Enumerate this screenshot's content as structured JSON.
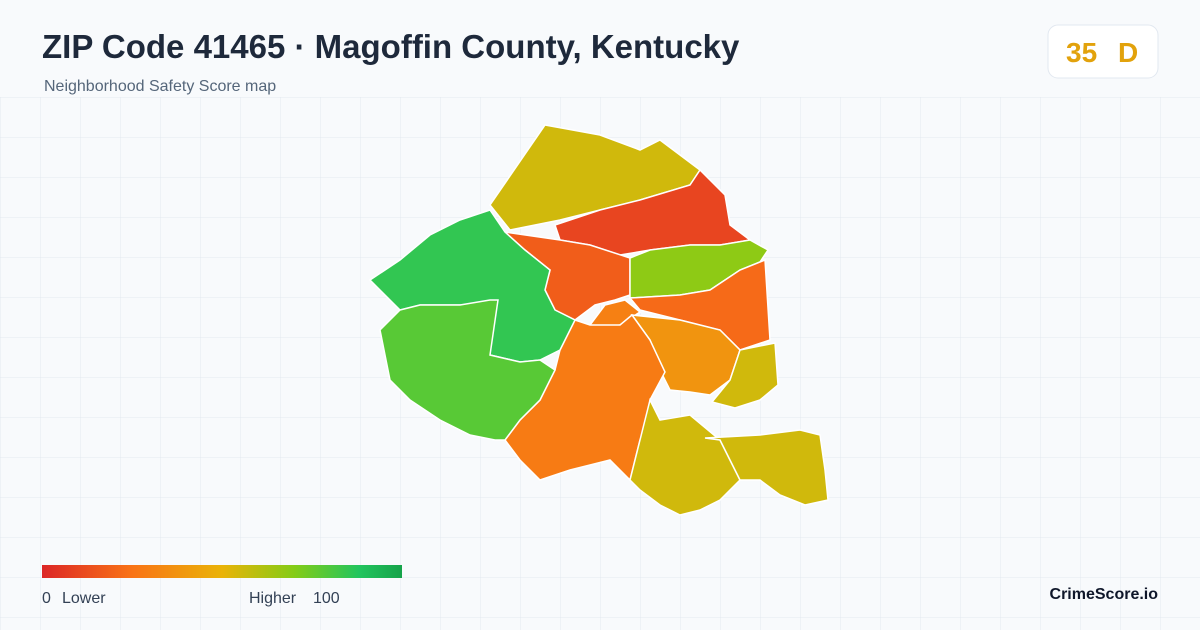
{
  "header": {
    "title": "ZIP Code 41465 · Magoffin County, Kentucky",
    "subtitle": "Neighborhood Safety Score map"
  },
  "score_badge": {
    "score": 35,
    "grade": "D"
  },
  "map": {
    "region_scores": [
      55,
      10,
      18,
      68,
      22,
      30,
      38,
      55,
      28,
      85,
      78,
      55,
      55
    ]
  },
  "legend": {
    "min": 0,
    "low_label": "Lower",
    "high_label": "Higher",
    "max": 100
  },
  "brand": "CrimeScore.io"
}
